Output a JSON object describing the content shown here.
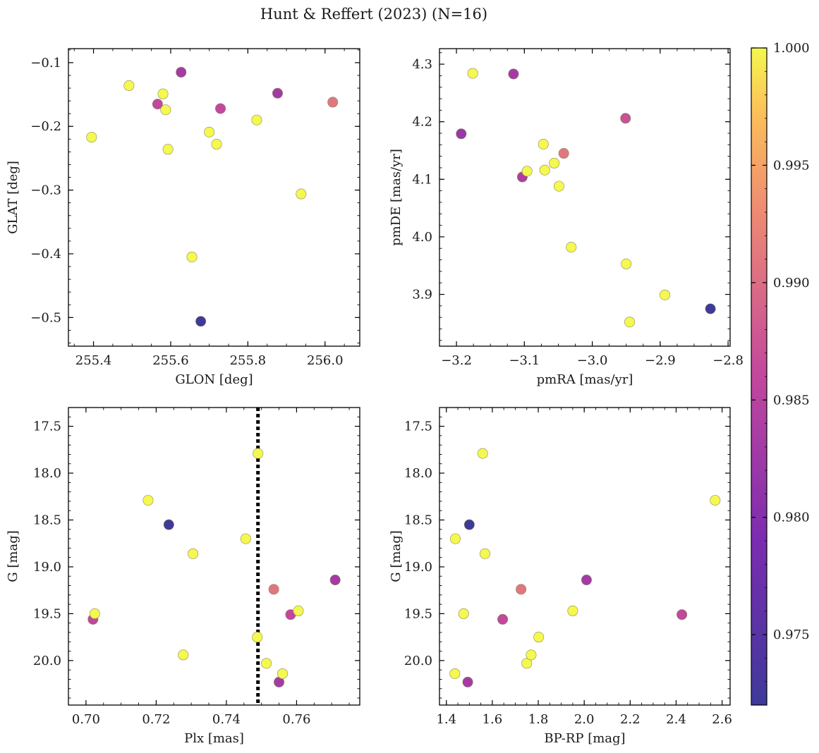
{
  "title": "Hunt & Reffert (2023) (N=16)",
  "colorbar": {
    "min": 0.972,
    "max": 1.0,
    "ticks": [
      0.975,
      0.98,
      0.985,
      0.99,
      0.995,
      1.0
    ],
    "tick_labels": [
      "0.975",
      "0.980",
      "0.985",
      "0.990",
      "0.995",
      "1.000"
    ]
  },
  "chart_data": [
    {
      "id": "glon-glat",
      "type": "scatter",
      "xlabel": "GLON [deg]",
      "ylabel": "GLAT [deg]",
      "xlim": [
        255.335,
        256.09
      ],
      "ylim": [
        -0.545,
        -0.078
      ],
      "xticks": [
        255.4,
        255.6,
        255.8,
        256.0
      ],
      "xtick_labels": [
        "255.4",
        "255.6",
        "255.8",
        "256.0"
      ],
      "yticks": [
        -0.5,
        -0.4,
        -0.3,
        -0.2,
        -0.1
      ],
      "ytick_labels": [
        "−0.5",
        "−0.4",
        "−0.3",
        "−0.2",
        "−0.1"
      ],
      "points": [
        {
          "x": 255.395,
          "y": -0.217,
          "c": 1.0
        },
        {
          "x": 255.492,
          "y": -0.136,
          "c": 1.0
        },
        {
          "x": 255.566,
          "y": -0.165,
          "c": 0.986
        },
        {
          "x": 255.58,
          "y": -0.149,
          "c": 1.0
        },
        {
          "x": 255.587,
          "y": -0.174,
          "c": 1.0
        },
        {
          "x": 255.593,
          "y": -0.236,
          "c": 1.0
        },
        {
          "x": 255.627,
          "y": -0.115,
          "c": 0.983
        },
        {
          "x": 255.655,
          "y": -0.405,
          "c": 1.0
        },
        {
          "x": 255.678,
          "y": -0.506,
          "c": 0.972
        },
        {
          "x": 255.7,
          "y": -0.209,
          "c": 1.0
        },
        {
          "x": 255.719,
          "y": -0.228,
          "c": 1.0
        },
        {
          "x": 255.729,
          "y": -0.172,
          "c": 0.986
        },
        {
          "x": 255.823,
          "y": -0.19,
          "c": 1.0
        },
        {
          "x": 255.877,
          "y": -0.148,
          "c": 0.983
        },
        {
          "x": 255.938,
          "y": -0.306,
          "c": 1.0
        },
        {
          "x": 256.02,
          "y": -0.162,
          "c": 0.991
        }
      ]
    },
    {
      "id": "pm",
      "type": "scatter",
      "xlabel": "pmRA [mas/yr]",
      "ylabel": "pmDE [mas/yr]",
      "xlim": [
        -3.225,
        -2.797
      ],
      "ylim": [
        3.81,
        4.327
      ],
      "xticks": [
        -3.2,
        -3.1,
        -3.0,
        -2.9,
        -2.8
      ],
      "xtick_labels": [
        "−3.2",
        "−3.1",
        "−3.0",
        "−2.9",
        "−2.8"
      ],
      "yticks": [
        3.9,
        4.0,
        4.1,
        4.2,
        4.3
      ],
      "ytick_labels": [
        "3.9",
        "4.0",
        "4.1",
        "4.2",
        "4.3"
      ],
      "points": [
        {
          "x": -3.193,
          "y": 4.179,
          "c": 0.982
        },
        {
          "x": -3.176,
          "y": 4.284,
          "c": 1.0
        },
        {
          "x": -3.116,
          "y": 4.283,
          "c": 0.983
        },
        {
          "x": -3.103,
          "y": 4.104,
          "c": 0.984
        },
        {
          "x": -3.096,
          "y": 4.114,
          "c": 1.0
        },
        {
          "x": -3.072,
          "y": 4.161,
          "c": 1.0
        },
        {
          "x": -3.07,
          "y": 4.116,
          "c": 1.0
        },
        {
          "x": -3.056,
          "y": 4.128,
          "c": 1.0
        },
        {
          "x": -3.049,
          "y": 4.088,
          "c": 1.0
        },
        {
          "x": -3.042,
          "y": 4.145,
          "c": 0.991
        },
        {
          "x": -3.031,
          "y": 3.982,
          "c": 1.0
        },
        {
          "x": -2.951,
          "y": 4.206,
          "c": 0.987
        },
        {
          "x": -2.95,
          "y": 3.953,
          "c": 1.0
        },
        {
          "x": -2.945,
          "y": 3.852,
          "c": 1.0
        },
        {
          "x": -2.893,
          "y": 3.899,
          "c": 1.0
        },
        {
          "x": -2.826,
          "y": 3.875,
          "c": 0.972
        }
      ]
    },
    {
      "id": "plx-g",
      "type": "scatter",
      "xlabel": "Plx [mas]",
      "ylabel": "G [mag]",
      "xlim": [
        0.695,
        0.778
      ],
      "ylim": [
        20.475,
        17.3
      ],
      "yinvert": true,
      "vline": {
        "x": 0.749,
        "style": "dotted"
      },
      "xticks": [
        0.7,
        0.72,
        0.74,
        0.76
      ],
      "xtick_labels": [
        "0.70",
        "0.72",
        "0.74",
        "0.76"
      ],
      "yticks": [
        17.5,
        18.0,
        18.5,
        19.0,
        19.5,
        20.0
      ],
      "ytick_labels": [
        "17.5",
        "18.0",
        "18.5",
        "19.0",
        "19.5",
        "20.0"
      ],
      "points": [
        {
          "x": 0.702,
          "y": 19.56,
          "c": 0.986
        },
        {
          "x": 0.7025,
          "y": 19.5,
          "c": 1.0
        },
        {
          "x": 0.7177,
          "y": 18.29,
          "c": 1.0
        },
        {
          "x": 0.7236,
          "y": 18.55,
          "c": 0.972
        },
        {
          "x": 0.7277,
          "y": 19.94,
          "c": 1.0
        },
        {
          "x": 0.7305,
          "y": 18.86,
          "c": 1.0
        },
        {
          "x": 0.7455,
          "y": 18.7,
          "c": 1.0
        },
        {
          "x": 0.749,
          "y": 17.79,
          "c": 1.0
        },
        {
          "x": 0.7488,
          "y": 19.75,
          "c": 1.0
        },
        {
          "x": 0.7514,
          "y": 20.03,
          "c": 1.0
        },
        {
          "x": 0.7535,
          "y": 19.24,
          "c": 0.991
        },
        {
          "x": 0.755,
          "y": 20.23,
          "c": 0.983
        },
        {
          "x": 0.756,
          "y": 20.14,
          "c": 1.0
        },
        {
          "x": 0.7583,
          "y": 19.51,
          "c": 0.986
        },
        {
          "x": 0.7605,
          "y": 19.47,
          "c": 1.0
        },
        {
          "x": 0.771,
          "y": 19.14,
          "c": 0.983
        }
      ]
    },
    {
      "id": "bprp-g",
      "type": "scatter",
      "xlabel": "BP-RP [mag]",
      "ylabel": "G [mag]",
      "xlim": [
        1.37,
        2.635
      ],
      "ylim": [
        20.475,
        17.3
      ],
      "yinvert": true,
      "xticks": [
        1.4,
        1.6,
        1.8,
        2.0,
        2.2,
        2.4,
        2.6
      ],
      "xtick_labels": [
        "1.4",
        "1.6",
        "1.8",
        "2.0",
        "2.2",
        "2.4",
        "2.6"
      ],
      "yticks": [
        17.5,
        18.0,
        18.5,
        19.0,
        19.5,
        20.0
      ],
      "ytick_labels": [
        "17.5",
        "18.0",
        "18.5",
        "19.0",
        "19.5",
        "20.0"
      ],
      "points": [
        {
          "x": 1.437,
          "y": 20.14,
          "c": 1.0
        },
        {
          "x": 1.439,
          "y": 18.7,
          "c": 1.0
        },
        {
          "x": 1.475,
          "y": 19.5,
          "c": 1.0
        },
        {
          "x": 1.493,
          "y": 20.23,
          "c": 0.983
        },
        {
          "x": 1.5,
          "y": 18.55,
          "c": 0.972
        },
        {
          "x": 1.558,
          "y": 17.79,
          "c": 1.0
        },
        {
          "x": 1.568,
          "y": 18.86,
          "c": 1.0
        },
        {
          "x": 1.645,
          "y": 19.56,
          "c": 0.986
        },
        {
          "x": 1.725,
          "y": 19.24,
          "c": 0.991
        },
        {
          "x": 1.75,
          "y": 20.03,
          "c": 1.0
        },
        {
          "x": 1.769,
          "y": 19.94,
          "c": 1.0
        },
        {
          "x": 1.802,
          "y": 19.75,
          "c": 1.0
        },
        {
          "x": 1.95,
          "y": 19.47,
          "c": 1.0
        },
        {
          "x": 2.01,
          "y": 19.14,
          "c": 0.983
        },
        {
          "x": 2.425,
          "y": 19.51,
          "c": 0.986
        },
        {
          "x": 2.57,
          "y": 18.29,
          "c": 1.0
        }
      ]
    }
  ]
}
